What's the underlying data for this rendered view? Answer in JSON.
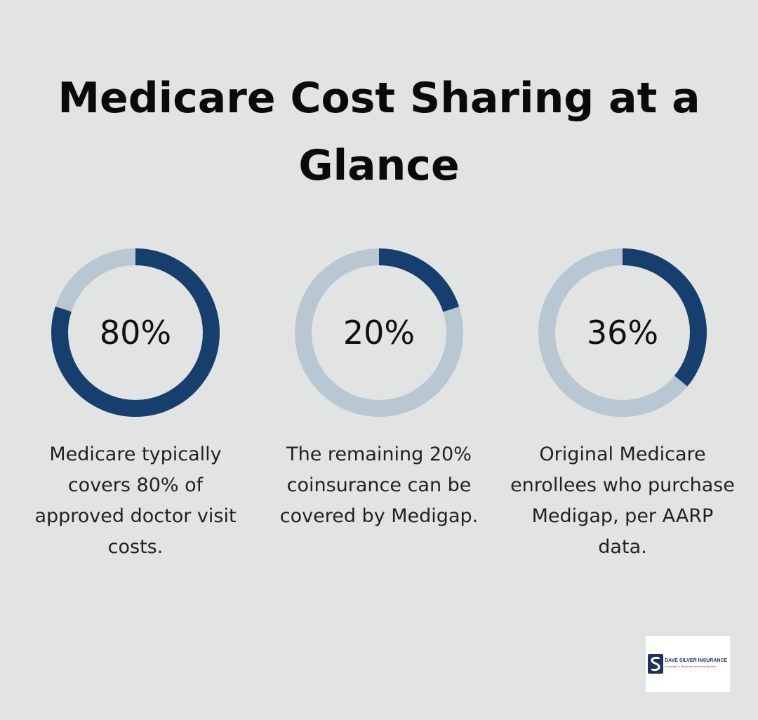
{
  "title": "Medicare Cost Sharing at a Glance",
  "colors": {
    "background": "#e2e3e3",
    "ring_fill": "#173f6d",
    "ring_track": "#b9c7d3"
  },
  "stats": [
    {
      "value": 80,
      "label": "80%",
      "description": "Medicare typically covers 80% of approved doctor visit costs."
    },
    {
      "value": 20,
      "label": "20%",
      "description": "The remaining 20% coinsurance can be covered by Medigap."
    },
    {
      "value": 36,
      "label": "36%",
      "description": "Original Medicare enrollees who purchase Medigap, per AARP data."
    }
  ],
  "logo": {
    "name": "DAVE SILVER INSURANCE",
    "tagline": "Focusing on Medicare Insurance Options"
  }
}
